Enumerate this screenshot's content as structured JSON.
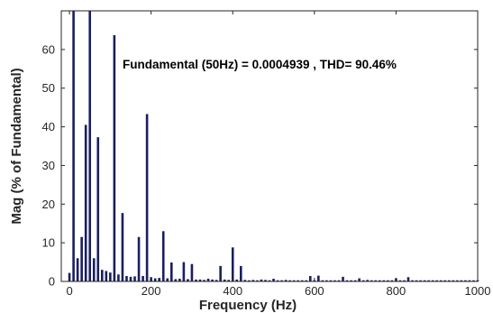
{
  "chart_data": {
    "type": "bar",
    "annotation": "Fundamental (50Hz) = 0.0004939 , THD= 90.46%",
    "xlabel": "Frequency (Hz)",
    "ylabel": "Mag (% of Fundamental)",
    "xlim": [
      -20,
      1000
    ],
    "ylim": [
      0,
      70
    ],
    "xticks": [
      0,
      200,
      400,
      600,
      800,
      1000
    ],
    "xtick_labels": [
      "0",
      "200",
      "400",
      "600",
      "800",
      "1000"
    ],
    "yticks": [
      0,
      10,
      20,
      30,
      40,
      50,
      60
    ],
    "ytick_labels": [
      "0",
      "10",
      "20",
      "30",
      "40",
      "50",
      "60"
    ],
    "grid": false,
    "bar_color": "#1a1f5e",
    "x": [
      0,
      10,
      20,
      30,
      40,
      50,
      60,
      70,
      80,
      90,
      100,
      110,
      120,
      130,
      140,
      150,
      160,
      170,
      180,
      190,
      200,
      210,
      220,
      230,
      240,
      250,
      260,
      270,
      280,
      290,
      300,
      310,
      320,
      330,
      340,
      350,
      360,
      370,
      380,
      390,
      400,
      410,
      420,
      430,
      440,
      450,
      460,
      470,
      480,
      490,
      500,
      510,
      520,
      530,
      540,
      550,
      560,
      570,
      580,
      590,
      600,
      610,
      620,
      630,
      640,
      650,
      660,
      670,
      680,
      690,
      700,
      710,
      720,
      730,
      740,
      750,
      760,
      770,
      780,
      790,
      800,
      810,
      820,
      830,
      840,
      850,
      860,
      870,
      880,
      890,
      900,
      910,
      920,
      930,
      940,
      950,
      960,
      970,
      980,
      990,
      1000
    ],
    "values": [
      2.2,
      70,
      6,
      11.5,
      40.5,
      70,
      6,
      37.3,
      3,
      2.7,
      2.3,
      63.7,
      1.8,
      17.7,
      1.4,
      1.2,
      1.3,
      11.5,
      1.4,
      43.3,
      1.1,
      0.8,
      0.9,
      13,
      0.8,
      4.9,
      0.6,
      0.7,
      5,
      0.6,
      4.5,
      0.5,
      0.5,
      0.4,
      0.7,
      0.5,
      0.4,
      4,
      0.5,
      0.4,
      8.8,
      0.5,
      4,
      0.4,
      0.3,
      0.4,
      0.3,
      0.5,
      0.4,
      0.3,
      0.7,
      0.3,
      0.3,
      0.4,
      0.3,
      0.3,
      0.3,
      0.3,
      0.3,
      1.4,
      0.3,
      1.5,
      0.3,
      0.3,
      0.3,
      0.3,
      0.3,
      1.2,
      0.3,
      0.3,
      0.3,
      0.8,
      0.3,
      0.4,
      0.3,
      0.3,
      0.3,
      0.3,
      0.3,
      0.3,
      0.8,
      0.3,
      0.3,
      1.1,
      0.3,
      0.3,
      0.3,
      0.3,
      0.3,
      0.3,
      0.3,
      0.3,
      0.3,
      0.3,
      0.3,
      0.3,
      0.3,
      0.3,
      0.3,
      0.3,
      0.3
    ]
  }
}
